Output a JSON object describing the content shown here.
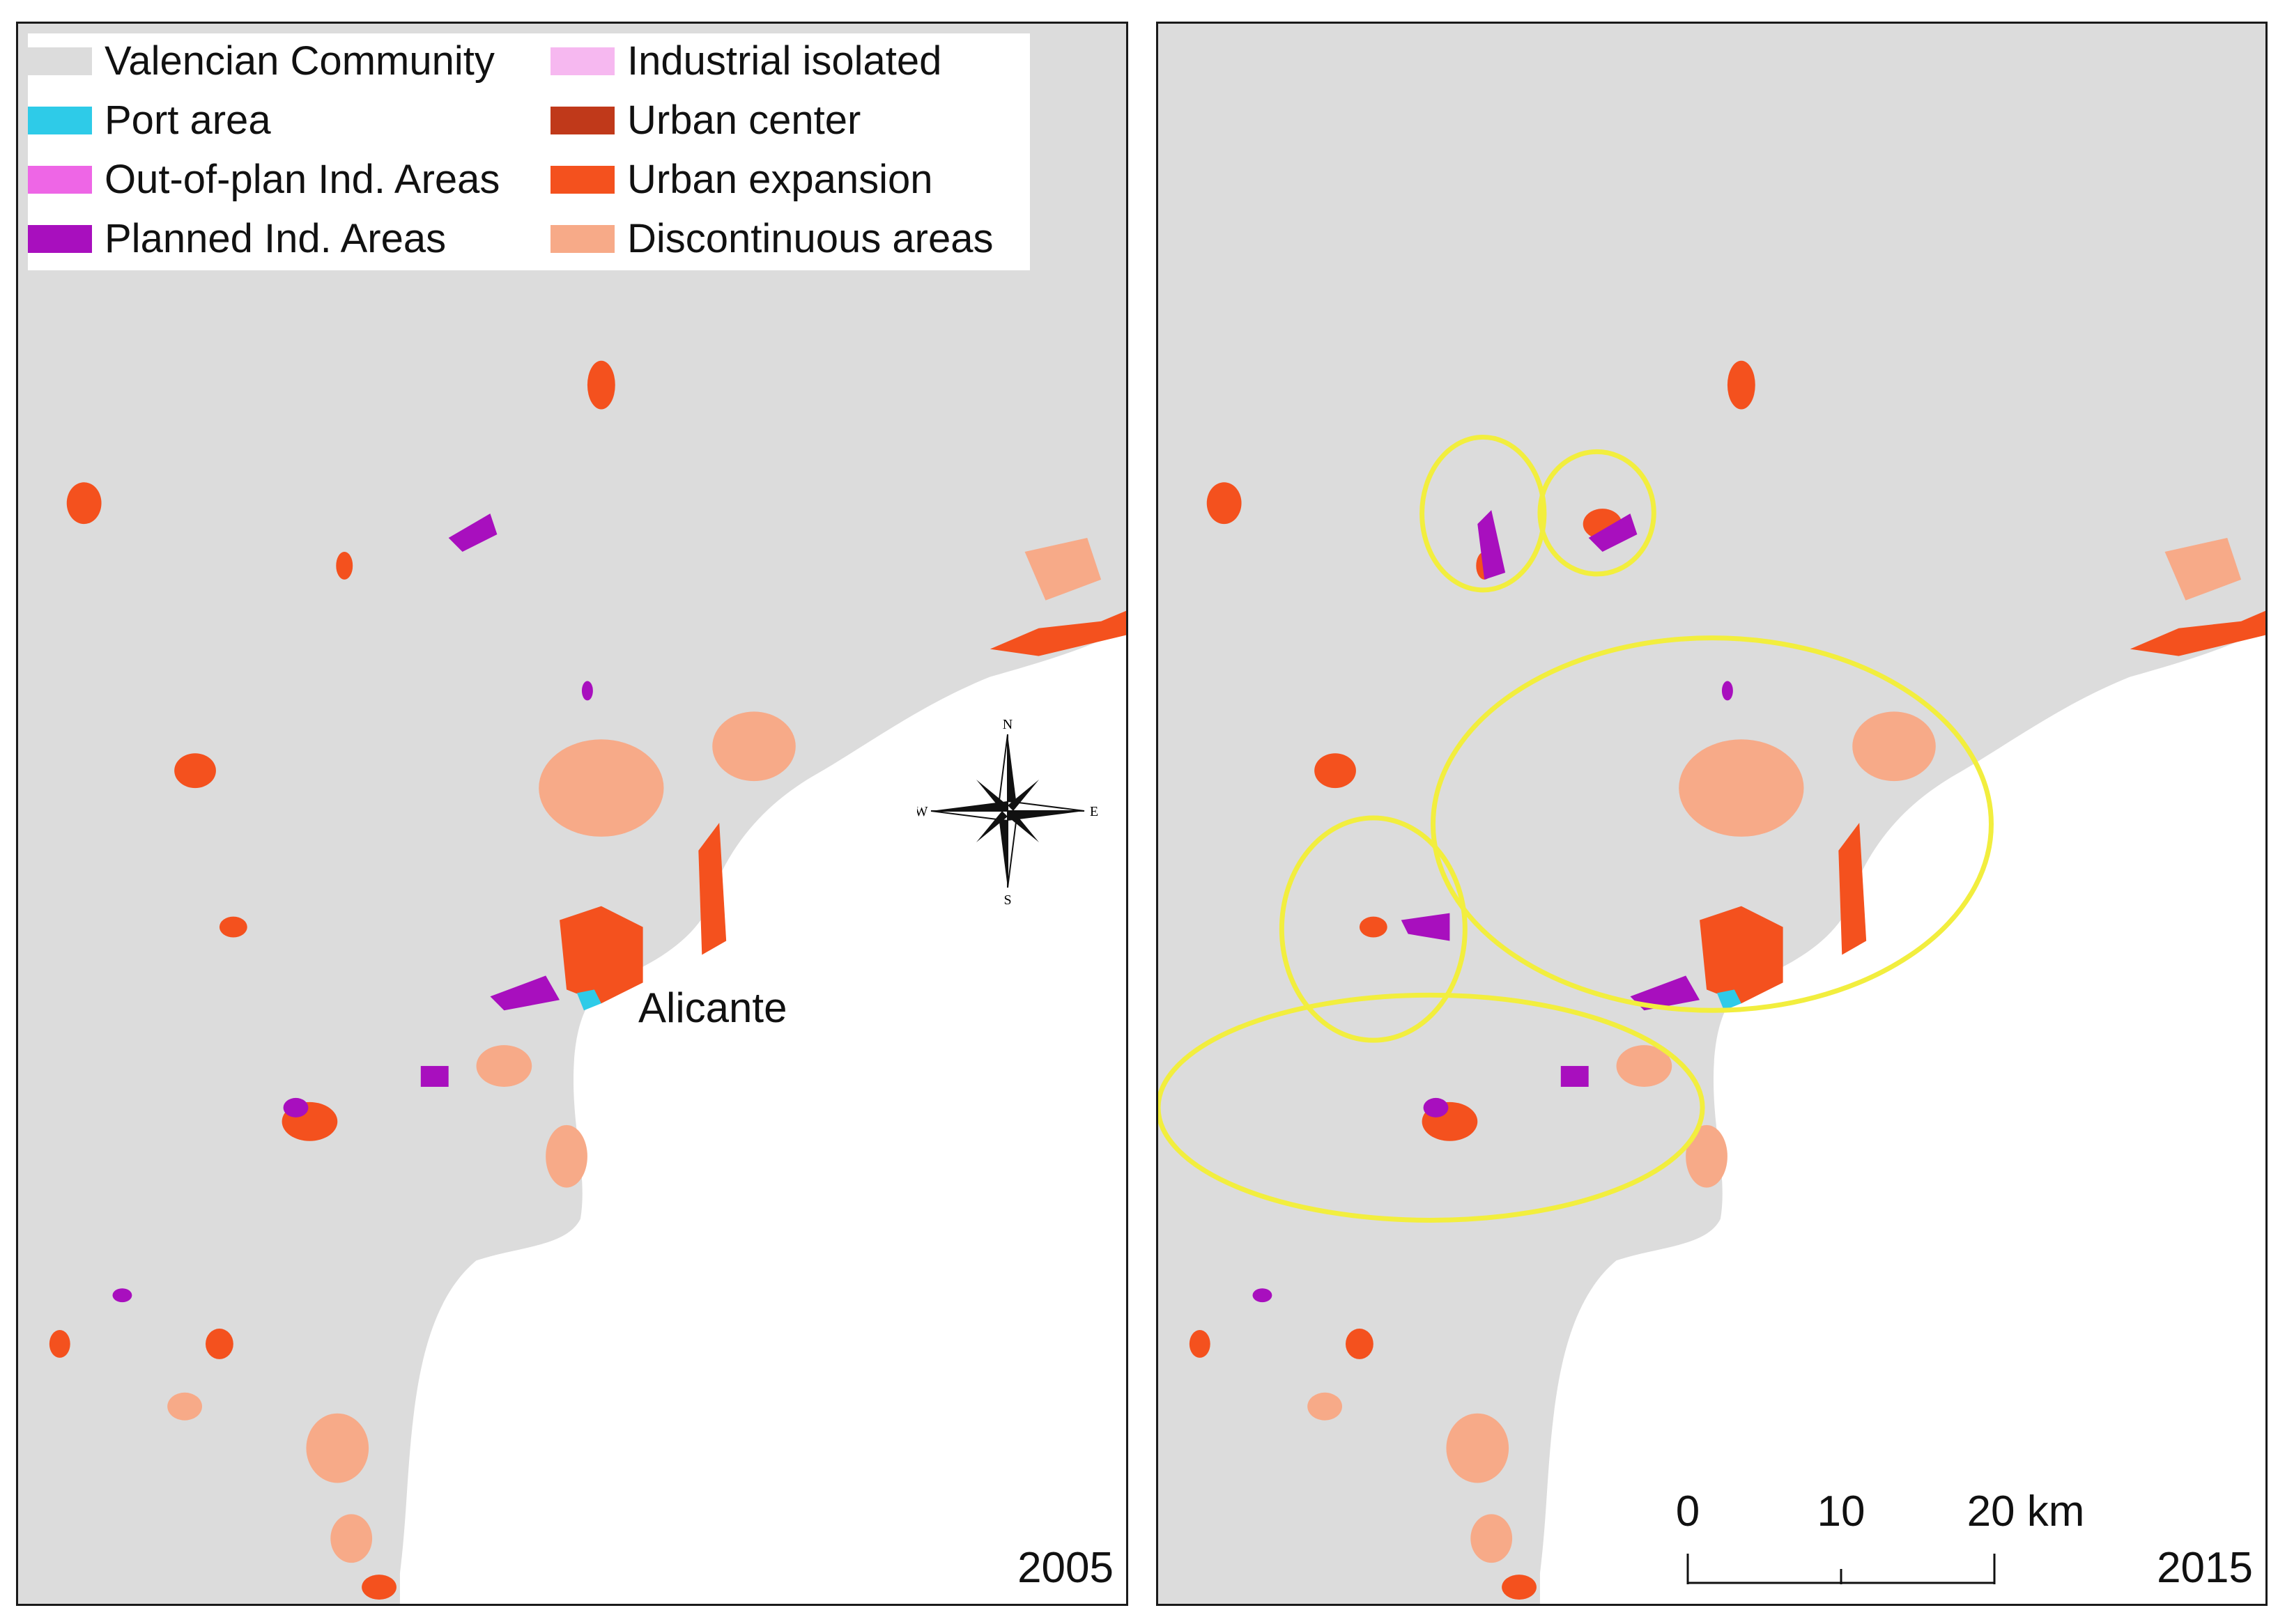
{
  "legend": {
    "items": [
      {
        "label": "Valencian Community",
        "color": "#dcdcdc"
      },
      {
        "label": "Port area",
        "color": "#2ecbe8"
      },
      {
        "label": "Out-of-plan Ind. Areas",
        "color": "#ee66e6"
      },
      {
        "label": "Planned Ind. Areas",
        "color": "#a80fbe"
      },
      {
        "label": "Industrial isolated",
        "color": "#f6b8f0"
      },
      {
        "label": "Urban center",
        "color": "#c0391a"
      },
      {
        "label": "Urban expansion",
        "color": "#f4511e"
      },
      {
        "label": "Discontinuous areas",
        "color": "#f7aa88"
      }
    ]
  },
  "panels": [
    {
      "year": "2005",
      "city_label": "Alicante"
    },
    {
      "year": "2015"
    }
  ],
  "compass": {
    "n": "N",
    "s": "S",
    "e": "E",
    "w": "W"
  },
  "scalebar": {
    "ticks": [
      "0",
      "10",
      "20 km"
    ]
  },
  "highlight_color": "#f2ee3e",
  "sea_color": "#ffffff",
  "land_color": "#dcdcdc"
}
